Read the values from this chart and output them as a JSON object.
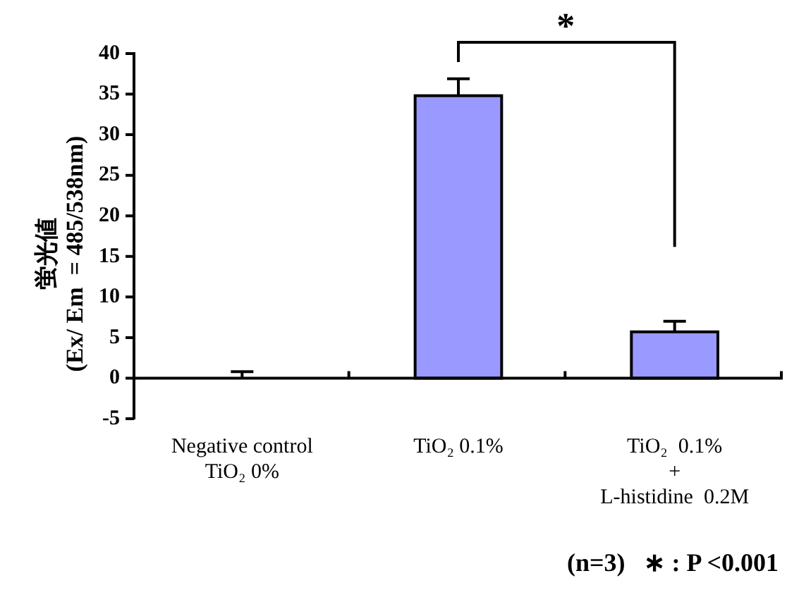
{
  "chart_data": {
    "type": "bar",
    "ylabel": "蛍光値\n(Ex/ Em  = 485/538nm)",
    "categories": [
      "Negative control\nTiO₂ 0%",
      "TiO₂ 0.1%",
      "TiO₂  0.1%\n+\nL-histidine  0.2M"
    ],
    "values": [
      0,
      34.8,
      5.7
    ],
    "errors": [
      0.8,
      2.1,
      1.3
    ],
    "color": "#9999ff",
    "ref_lines": [
      {
        "axis": "y",
        "value": 0,
        "color": "#000000"
      }
    ],
    "ylim": [
      -5,
      40
    ],
    "yticks": [
      -5,
      0,
      5,
      10,
      15,
      20,
      25,
      30,
      35,
      40
    ],
    "grid": false,
    "legend": false,
    "annotations": [
      "*",
      "(n=3)   ∗ : P <0.001"
    ]
  }
}
